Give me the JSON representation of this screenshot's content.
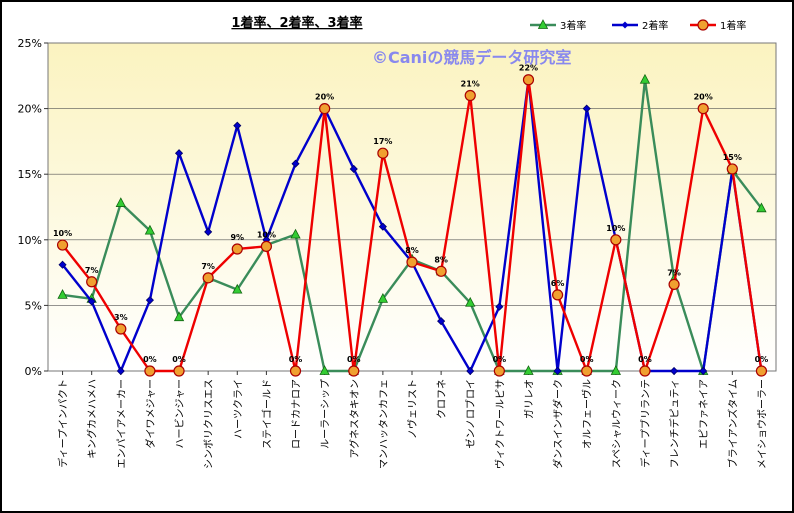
{
  "chart_data": {
    "type": "line",
    "title": "1着率、2着率、3着率",
    "watermark": "©Caniの競馬データ研究室",
    "categories": [
      "ディープインパクト",
      "キングカメハメハ",
      "エンパイアメーカー",
      "ダイワメジャー",
      "ハービンジャー",
      "シンボリクリスエス",
      "ハーツクライ",
      "ステイゴールド",
      "ロードカナロア",
      "ルーラーシップ",
      "アグネスタキオン",
      "マンハッタンカフェ",
      "ノヴェリスト",
      "クロフネ",
      "ゼンノロブロイ",
      "ヴィクトワールピサ",
      "ガリレオ",
      "ダンスインザダーク",
      "オルフェーヴル",
      "スペシャルウィーク",
      "ディープブリランテ",
      "フレンチデピュティ",
      "エピファネイア",
      "ブライアンズタイム",
      "メイショウボーラー"
    ],
    "y_tick_labels": [
      "0%",
      "5%",
      "10%",
      "15%",
      "20%",
      "25%"
    ],
    "ylim": [
      0,
      25
    ],
    "grid": "horizontal",
    "legend_position": "top-right",
    "series": [
      {
        "name": "3着率",
        "color": "#3a8c5a",
        "marker": "triangle",
        "values": [
          5.8,
          5.5,
          12.8,
          10.7,
          4.1,
          7.1,
          6.2,
          9.6,
          10.4,
          0,
          0,
          5.5,
          8.5,
          7.6,
          5.2,
          0,
          0,
          0,
          0,
          0,
          22.2,
          7.0,
          0,
          15.3,
          12.4
        ]
      },
      {
        "name": "2着率",
        "color": "#0000cc",
        "marker": "diamond",
        "values": [
          8.1,
          5.3,
          0,
          5.4,
          16.6,
          10.6,
          18.7,
          10.0,
          15.8,
          20.0,
          15.4,
          11.0,
          8.3,
          3.8,
          0,
          4.9,
          22.2,
          0,
          20.0,
          10.0,
          0,
          0,
          0,
          15.3,
          0
        ]
      },
      {
        "name": "1着率",
        "color": "#ee0000",
        "marker": "circle",
        "values": [
          9.6,
          6.8,
          3.2,
          0,
          0,
          7.1,
          9.3,
          9.5,
          0,
          20.0,
          0,
          16.6,
          8.3,
          7.6,
          21.0,
          0,
          22.2,
          5.8,
          0,
          10.0,
          0,
          6.6,
          20.0,
          15.4,
          0
        ]
      }
    ],
    "data_labels": [
      "10%",
      "7%",
      "3%",
      "0%",
      "0%",
      "7%",
      "9%",
      "10%",
      "0%",
      "20%",
      "0%",
      "17%",
      "8%",
      "8%",
      "21%",
      "0%",
      "22%",
      "6%",
      "0%",
      "10%",
      "0%",
      "7%",
      "20%",
      "15%",
      "0%"
    ]
  }
}
